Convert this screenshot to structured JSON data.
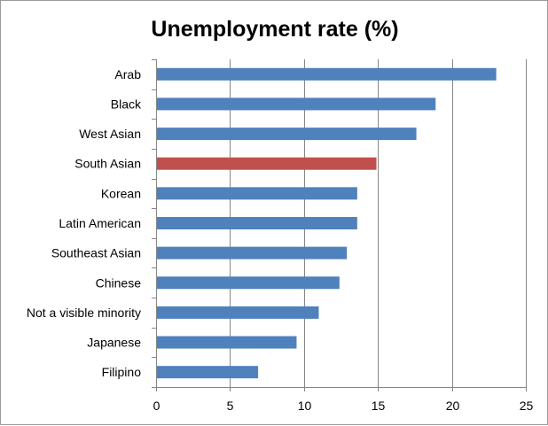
{
  "chart_data": {
    "type": "bar",
    "orientation": "horizontal",
    "title": "Unemployment rate (%)",
    "xlabel": "",
    "ylabel": "",
    "categories": [
      "Arab",
      "Black",
      "West Asian",
      "South Asian",
      "Korean",
      "Latin American",
      "Southeast Asian",
      "Chinese",
      "Not a visible minority",
      "Japanese",
      "Filipino"
    ],
    "values": [
      23.0,
      18.9,
      17.6,
      14.9,
      13.6,
      13.6,
      12.9,
      12.4,
      11.0,
      9.5,
      6.9
    ],
    "highlight_category": "South Asian",
    "xlim": [
      0,
      25
    ],
    "xticks": [
      0,
      5,
      10,
      15,
      20,
      25
    ],
    "grid": "vertical",
    "legend": "none",
    "colors": {
      "bar": "#4f81bd",
      "highlight": "#c0504d",
      "grid": "#868686",
      "axis": "#868686",
      "frame": "#9a9a9a"
    }
  }
}
